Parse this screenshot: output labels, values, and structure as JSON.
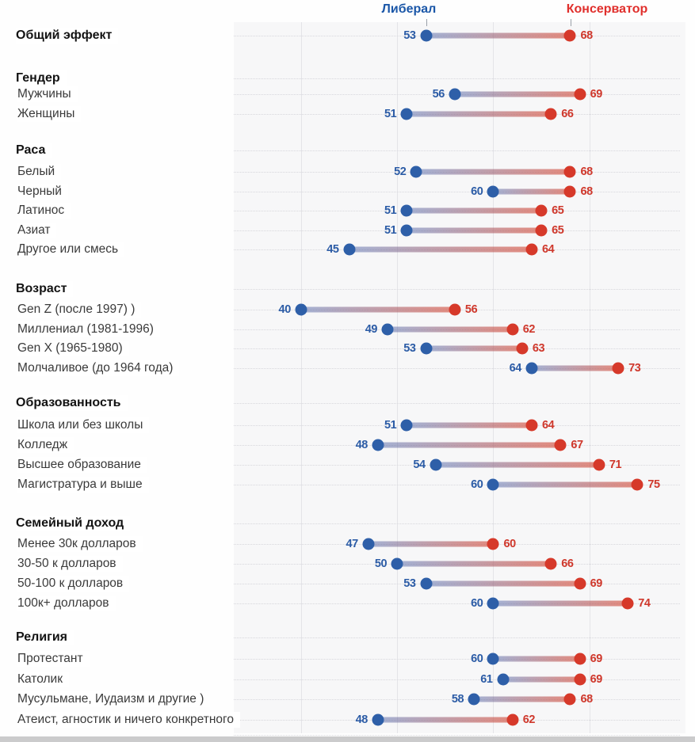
{
  "header": {
    "liberal_label": "Либерал",
    "conservative_label": "Консерватор",
    "liberal_color": "#1b57a8",
    "conservative_color": "#e02f2c"
  },
  "chart_data": {
    "type": "scatter",
    "subtype": "dumbbell",
    "title": "",
    "legend": {
      "position": "top",
      "entries": [
        "Либерал",
        "Консерватор"
      ]
    },
    "colors": {
      "liberal_dot": "#2e5fa8",
      "conservative_dot": "#d6392a",
      "liberal_value_text": "#2c5ca6",
      "conservative_value_text": "#cf382c"
    },
    "axis": {
      "min": 33,
      "max": 80,
      "gridline_values": [
        40,
        50,
        60,
        70
      ],
      "grid": true
    },
    "overall": {
      "label": "Общий эффект",
      "liberal": 53,
      "conservative": 68
    },
    "groups": [
      {
        "title": "Гендер",
        "rows": [
          {
            "label": "Мужчины",
            "liberal": 56,
            "conservative": 69
          },
          {
            "label": "Женщины",
            "liberal": 51,
            "conservative": 66
          }
        ]
      },
      {
        "title": "Раса",
        "rows": [
          {
            "label": "Белый",
            "liberal": 52,
            "conservative": 68
          },
          {
            "label": "Черный",
            "liberal": 60,
            "conservative": 68
          },
          {
            "label": "Латинос",
            "liberal": 51,
            "conservative": 65
          },
          {
            "label": "Азиат",
            "liberal": 51,
            "conservative": 65
          },
          {
            "label": "Другое или смесь",
            "liberal": 45,
            "conservative": 64
          }
        ]
      },
      {
        "title": "Возраст",
        "rows": [
          {
            "label": "Gen Z (после 1997) )",
            "liberal": 40,
            "conservative": 56
          },
          {
            "label": "Миллениал (1981-1996)",
            "liberal": 49,
            "conservative": 62
          },
          {
            "label": "Gen X (1965-1980)",
            "liberal": 53,
            "conservative": 63
          },
          {
            "label": "Молчаливое (до 1964 года)",
            "liberal": 64,
            "conservative": 73
          }
        ]
      },
      {
        "title": "Образованность",
        "rows": [
          {
            "label": "Школа или без школы",
            "liberal": 51,
            "conservative": 64
          },
          {
            "label": "Колледж",
            "liberal": 48,
            "conservative": 67
          },
          {
            "label": "Высшее образование",
            "liberal": 54,
            "conservative": 71
          },
          {
            "label": "Магистратура и выше",
            "liberal": 60,
            "conservative": 75
          }
        ]
      },
      {
        "title": "Семейный доход",
        "rows": [
          {
            "label": "Менее 30к долларов",
            "liberal": 47,
            "conservative": 60
          },
          {
            "label": "30-50 к долларов",
            "liberal": 50,
            "conservative": 66
          },
          {
            "label": "50-100 к долларов",
            "liberal": 53,
            "conservative": 69
          },
          {
            "label": "100к+ долларов",
            "liberal": 60,
            "conservative": 74
          }
        ]
      },
      {
        "title": "Религия",
        "rows": [
          {
            "label": "Протестант",
            "liberal": 60,
            "conservative": 69
          },
          {
            "label": "Католик",
            "liberal": 61,
            "conservative": 69
          },
          {
            "label": "Мусульмане, Иудаизм и другие )",
            "liberal": 58,
            "conservative": 68
          },
          {
            "label": "Атеист, агностик и ничего конкретного",
            "liberal": 48,
            "conservative": 62
          }
        ]
      }
    ]
  }
}
